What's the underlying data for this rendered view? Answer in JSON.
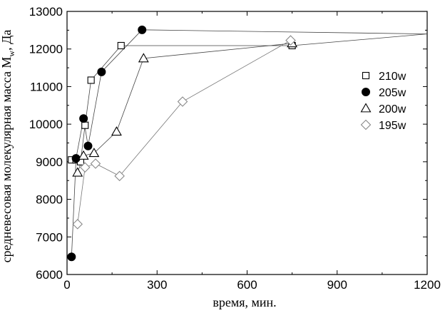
{
  "chart_data": {
    "type": "scatter",
    "xlabel": "время, мин.",
    "ylabel": "средневесовая молекулярная масса M",
    "ylabel_sub": "w",
    "ylabel_suffix": ", Да",
    "xlim": [
      0,
      1200
    ],
    "ylim": [
      6000,
      13000
    ],
    "xticks": [
      0,
      300,
      600,
      900,
      1200
    ],
    "yticks": [
      6000,
      7000,
      8000,
      9000,
      10000,
      11000,
      12000,
      13000
    ],
    "grid": false,
    "legend_position": "right",
    "series": [
      {
        "name": "210w",
        "marker": "square",
        "x": [
          15,
          30,
          45,
          60,
          80,
          180,
          750,
          1200
        ],
        "y": [
          9050,
          9050,
          9000,
          9970,
          11170,
          12090,
          12090,
          12400
        ]
      },
      {
        "name": "205w",
        "marker": "circle",
        "x": [
          15,
          30,
          55,
          70,
          115,
          250,
          1200
        ],
        "y": [
          6470,
          9090,
          10150,
          9420,
          11390,
          12510,
          12400
        ]
      },
      {
        "name": "200w",
        "marker": "triangle",
        "x": [
          35,
          55,
          90,
          165,
          255,
          750
        ],
        "y": [
          8710,
          9160,
          9230,
          9800,
          11750,
          12150
        ]
      },
      {
        "name": "195w",
        "marker": "diamond",
        "x": [
          35,
          60,
          95,
          175,
          385,
          745
        ],
        "y": [
          7340,
          8850,
          8950,
          8620,
          10600,
          12230
        ]
      }
    ]
  }
}
